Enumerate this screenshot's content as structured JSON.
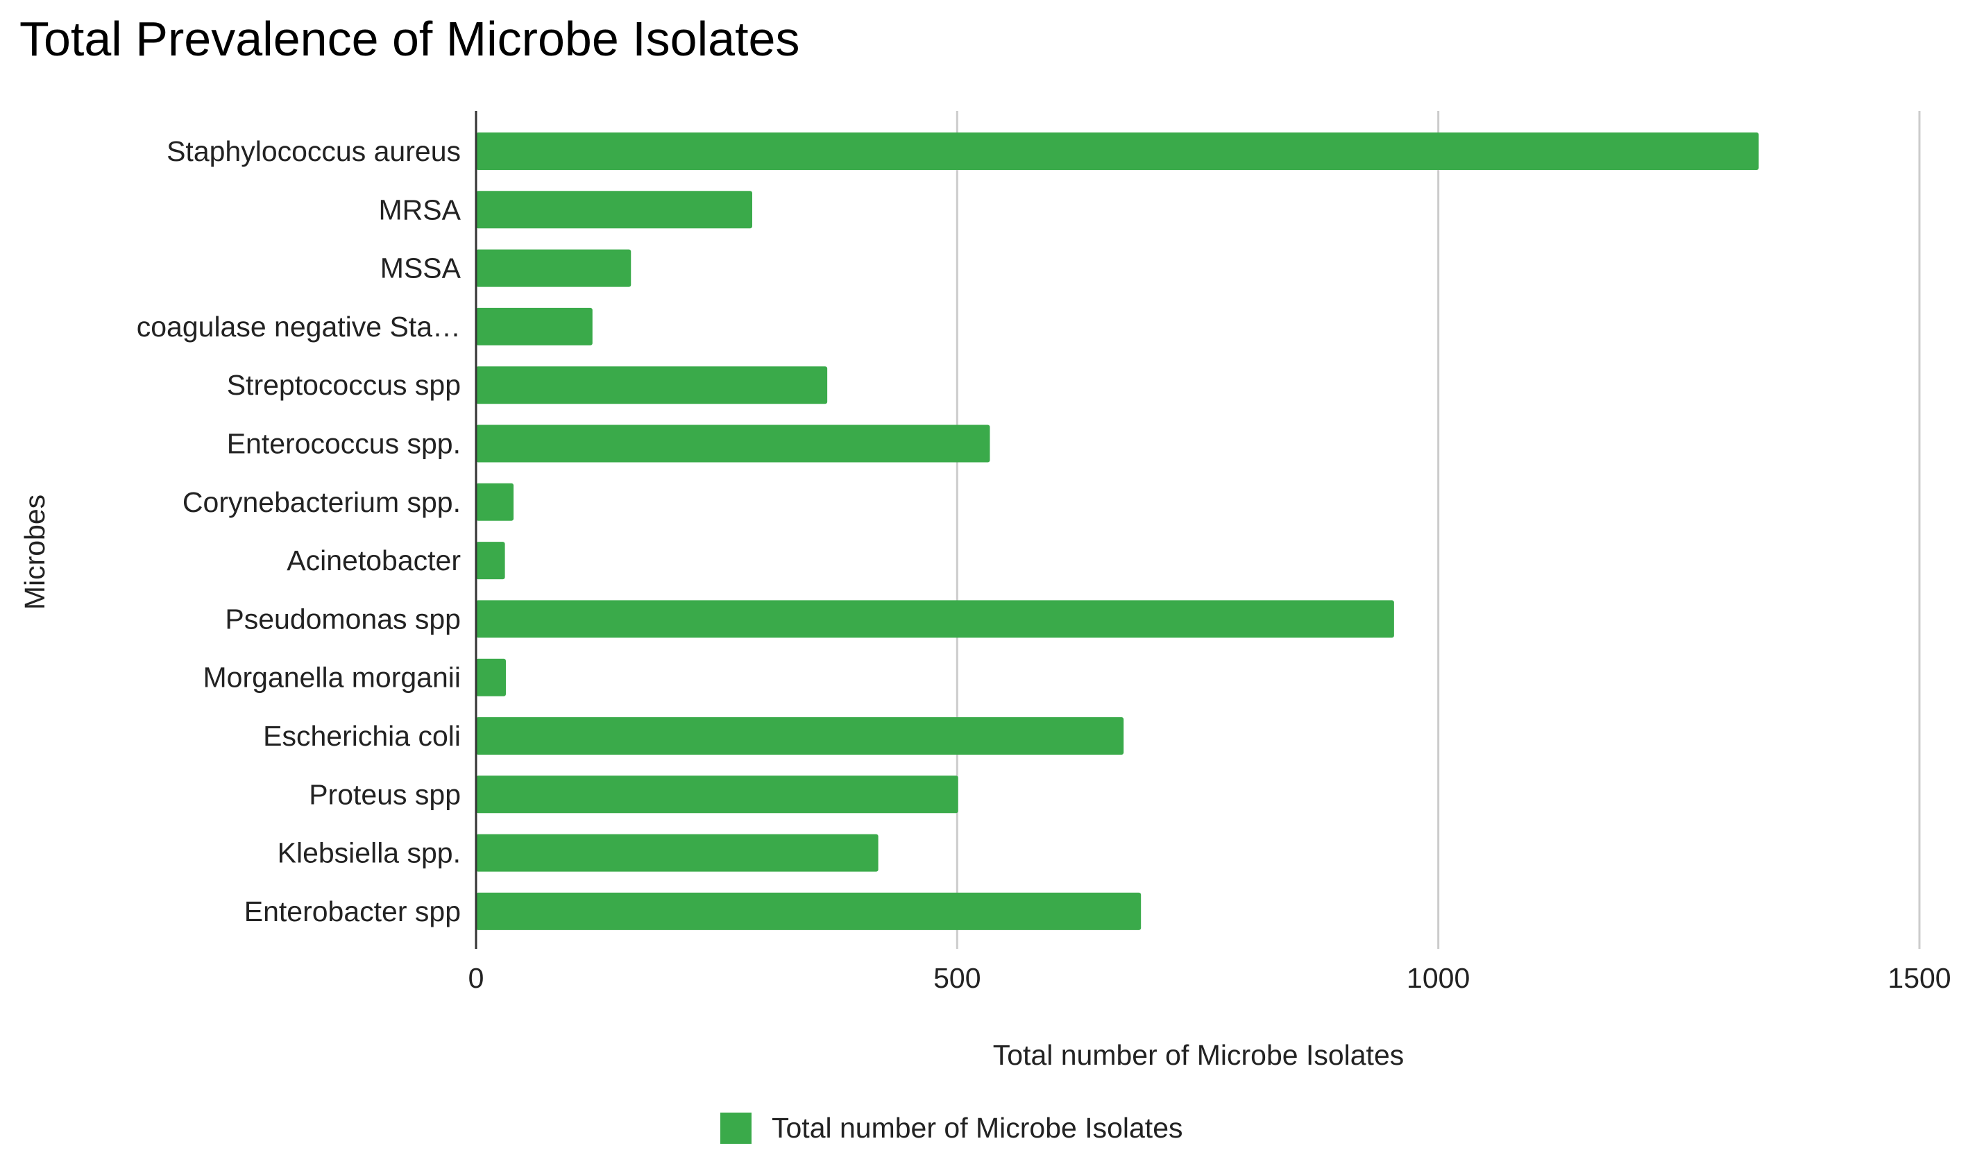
{
  "chart_data": {
    "type": "bar",
    "orientation": "horizontal",
    "title": "Total Prevalence of Microbe Isolates",
    "xlabel": "Total number of Microbe Isolates",
    "ylabel": "Microbes",
    "xlim": [
      0,
      1500
    ],
    "xticks": [
      "0",
      "500",
      "1000",
      "1500"
    ],
    "grid": "vertical",
    "legend_position": "bottom",
    "categories": [
      "Staphylococcus aureus",
      "MRSA",
      "MSSA",
      "coagulase negative Sta…",
      "Streptococcus spp",
      "Enterococcus spp.",
      "Corynebacterium spp.",
      "Acinetobacter",
      "Pseudomonas spp",
      "Morganella morganii",
      "Escherichia coli",
      "Proteus spp",
      "Klebsiella spp.",
      "Enterobacter spp"
    ],
    "series": [
      {
        "name": "Total number of Microbe Isolates",
        "color": "#3aaa4a",
        "values": [
          1333,
          287,
          161,
          121,
          365,
          534,
          39,
          30,
          954,
          31,
          673,
          501,
          418,
          691
        ]
      }
    ]
  }
}
